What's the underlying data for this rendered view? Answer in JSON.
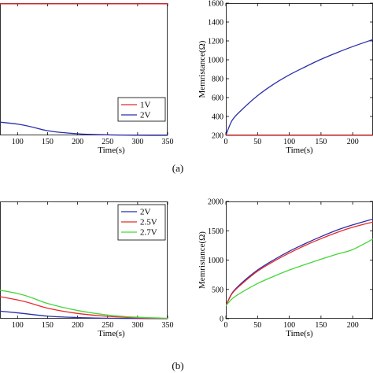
{
  "panel_labels": [
    "(a)",
    "(b)"
  ],
  "chart_data": [
    {
      "id": "a-left",
      "type": "line",
      "xlabel": "Time(s)",
      "ylabel": "",
      "xlim": [
        0,
        350
      ],
      "ylim": [
        0,
        1
      ],
      "xticks": [
        100,
        150,
        200,
        250,
        300,
        350
      ],
      "xtick_labels": [
        "100",
        "150",
        "200",
        "250",
        "300",
        "350"
      ],
      "yticks": [],
      "ytick_labels": [],
      "legend": "lower-right",
      "series": [
        {
          "name": "1V",
          "color": "#e8282c",
          "x": [
            0,
            350
          ],
          "y": [
            0.995,
            0.995
          ]
        },
        {
          "name": "2V",
          "color": "#2a2ea8",
          "x": [
            0,
            100,
            150,
            200,
            250,
            300,
            350
          ],
          "y": [
            0.13,
            0.085,
            0.035,
            0.012,
            0.004,
            0.001,
            0.0
          ]
        }
      ]
    },
    {
      "id": "a-right",
      "type": "line",
      "xlabel": "Time(s)",
      "ylabel": "Memristance(Ω)",
      "xlim": [
        0,
        232
      ],
      "ylim": [
        200,
        1600
      ],
      "xticks": [
        0,
        50,
        100,
        150,
        200
      ],
      "xtick_labels": [
        "0",
        "50",
        "100",
        "150",
        "200"
      ],
      "yticks": [
        200,
        400,
        600,
        800,
        1000,
        1200,
        1400,
        1600
      ],
      "ytick_labels": [
        "200",
        "400",
        "600",
        "800",
        "1000",
        "1200",
        "1400",
        "1600"
      ],
      "series": [
        {
          "name": "1V",
          "color": "#e8282c",
          "x": [
            0,
            232
          ],
          "y": [
            200,
            200
          ]
        },
        {
          "name": "2V",
          "color": "#2a2ea8",
          "x": [
            0,
            10,
            25,
            50,
            75,
            100,
            125,
            150,
            175,
            200,
            232
          ],
          "y": [
            200,
            360,
            470,
            620,
            740,
            840,
            925,
            1005,
            1075,
            1140,
            1215
          ]
        }
      ]
    },
    {
      "id": "b-left",
      "type": "line",
      "xlabel": "Time(s)",
      "ylabel": "",
      "xlim": [
        0,
        350
      ],
      "ylim": [
        0,
        1
      ],
      "xticks": [
        100,
        150,
        200,
        250,
        300,
        350
      ],
      "xtick_labels": [
        "100",
        "150",
        "200",
        "250",
        "300",
        "350"
      ],
      "yticks": [],
      "ytick_labels": [],
      "legend": "top-right",
      "series": [
        {
          "name": "2V",
          "color": "#2a2ea8",
          "x": [
            0,
            100,
            150,
            200,
            250,
            300,
            350
          ],
          "y": [
            0.1,
            0.05,
            0.022,
            0.01,
            0.004,
            0.002,
            0.0
          ]
        },
        {
          "name": "2.5V",
          "color": "#e8282c",
          "x": [
            0,
            100,
            150,
            200,
            250,
            300,
            350
          ],
          "y": [
            0.25,
            0.16,
            0.09,
            0.045,
            0.02,
            0.007,
            0.002
          ]
        },
        {
          "name": "2.7V",
          "color": "#45d63a",
          "x": [
            0,
            100,
            150,
            200,
            250,
            300,
            350
          ],
          "y": [
            0.3,
            0.215,
            0.13,
            0.07,
            0.032,
            0.012,
            0.004
          ]
        }
      ]
    },
    {
      "id": "b-right",
      "type": "line",
      "xlabel": "Time(s)",
      "ylabel": "Memristance(Ω)",
      "xlim": [
        0,
        232
      ],
      "ylim": [
        0,
        2000
      ],
      "xticks": [
        0,
        50,
        100,
        150,
        200
      ],
      "xtick_labels": [
        "0",
        "50",
        "100",
        "150",
        "200"
      ],
      "yticks": [
        0,
        500,
        1000,
        1500,
        2000
      ],
      "ytick_labels": [
        "0",
        "500",
        "1000",
        "1500",
        "2000"
      ],
      "series": [
        {
          "name": "2V",
          "color": "#2a2ea8",
          "x": [
            0,
            10,
            25,
            50,
            75,
            100,
            125,
            150,
            175,
            200,
            232
          ],
          "y": [
            220,
            440,
            610,
            830,
            1000,
            1150,
            1280,
            1400,
            1510,
            1600,
            1700
          ]
        },
        {
          "name": "2.5V",
          "color": "#e8282c",
          "x": [
            0,
            10,
            25,
            50,
            75,
            100,
            125,
            150,
            175,
            200,
            232
          ],
          "y": [
            220,
            430,
            590,
            810,
            975,
            1120,
            1250,
            1365,
            1470,
            1560,
            1650
          ]
        },
        {
          "name": "2.7V",
          "color": "#45d63a",
          "x": [
            0,
            10,
            25,
            50,
            75,
            100,
            125,
            150,
            175,
            200,
            232
          ],
          "y": [
            220,
            340,
            450,
            600,
            720,
            830,
            925,
            1015,
            1100,
            1180,
            1360
          ]
        }
      ]
    }
  ]
}
